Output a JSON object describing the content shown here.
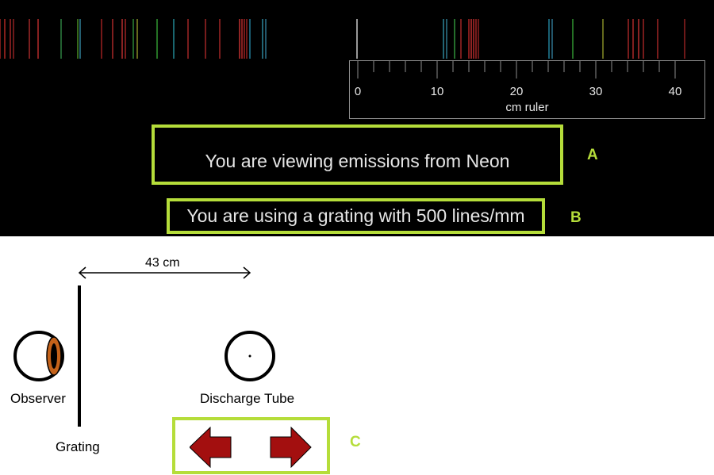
{
  "spectrum": {
    "element": "Neon",
    "line_positions_cm": [
      -45,
      -44.4,
      -43.7,
      -43.3,
      -41.3,
      -40.2,
      -37.3,
      -35.2,
      -34.9,
      -32.2,
      -30.8,
      -29.6,
      -29.2,
      -28.2,
      -27.7,
      -25.2,
      -23.1,
      -21.3,
      -19.1,
      -17.3,
      -14.8,
      -14.5,
      -14.2,
      -13.9,
      -13.5,
      -11.9,
      -11.5,
      0,
      10.9,
      11.3,
      12.3,
      13.1,
      14.1,
      14.4,
      14.7,
      15.0,
      15.3,
      24.2,
      24.6,
      27.2,
      31.0,
      34.2,
      34.8,
      35.5,
      36.1,
      37.9,
      41.3
    ],
    "line_colors": [
      "#c8302b",
      "#d8322c",
      "#c83030",
      "#b52a2a",
      "#cc3333",
      "#e03535",
      "#3aa050",
      "#5ab030",
      "#3c9cbc",
      "#c02828",
      "#d63333",
      "#e23838",
      "#c52c2c",
      "#3aa640",
      "#a8b030",
      "#3cbc3c",
      "#2aaab8",
      "#c83030",
      "#c83030",
      "#c83030",
      "#f03c3c",
      "#e03434",
      "#c82828",
      "#b82626",
      "#2a96b8",
      "#3aa6c0",
      "#3a90b0",
      "#ffffff",
      "#3aa6c0",
      "#3a96b0",
      "#3cb848",
      "#c83030",
      "#d63030",
      "#f03c3c",
      "#e23535",
      "#c82b2b",
      "#b52828",
      "#2aa0c0",
      "#3a90b0",
      "#3cbc3c",
      "#a8b030",
      "#c83030",
      "#d63333",
      "#e23838",
      "#c52c2c",
      "#c83030",
      "#b52828"
    ]
  },
  "ruler": {
    "tick_labels": [
      "0",
      "10",
      "20",
      "30",
      "40"
    ],
    "caption": "cm ruler"
  },
  "callouts": {
    "a_text": "You are viewing emissions from Neon",
    "a_letter": "A",
    "b_text": "You are using a grating with 500 lines/mm",
    "b_letter": "B",
    "c_letter": "C"
  },
  "scene": {
    "distance_label": "43 cm",
    "observer_label": "Observer",
    "tube_label": "Discharge Tube",
    "grating_label": "Grating"
  },
  "colors": {
    "highlight": "#b5dd3a",
    "arrow_fill": "#a30f0f",
    "eye_iris": "#c4621a"
  },
  "icons": {
    "left_control": "left-arrow-icon",
    "right_control": "right-arrow-icon",
    "observer": "eye-icon",
    "tube": "discharge-tube-icon"
  }
}
